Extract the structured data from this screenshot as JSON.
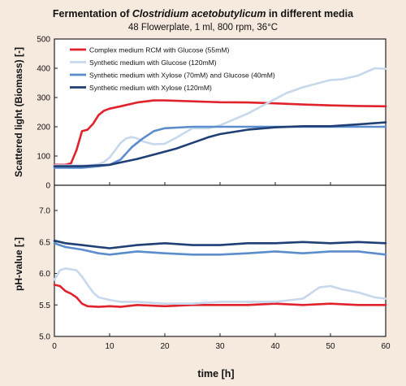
{
  "title": {
    "prefix": "Fermentation of ",
    "organism": "Clostridium  acetobutylicum",
    "suffix": "  in different media"
  },
  "subtitle": "48 Flowerplate, 1 ml, 800 rpm, 36°C",
  "colors": {
    "background": "#f6e9de",
    "series": [
      "#e0222c",
      "#c8d8ec",
      "#5b8ccc",
      "#1f3f75"
    ]
  },
  "chart_data": [
    {
      "type": "line",
      "panel": "top",
      "ylabel": "Scattered light (Biomass)  [-]",
      "xlim": [
        0,
        60
      ],
      "ylim": [
        0,
        500
      ],
      "yticks": [
        0,
        100,
        200,
        300,
        400,
        500
      ],
      "ytick_labels": [
        "0",
        "100",
        "200",
        "300",
        "400",
        "500"
      ],
      "grid": false,
      "legend_position": "top-left",
      "series": [
        {
          "name": "Complex medium RCM with Glucose (55mM)",
          "x": [
            0,
            2,
            3,
            4,
            5,
            6,
            7,
            8,
            9,
            10,
            12,
            15,
            18,
            20,
            25,
            30,
            35,
            40,
            45,
            50,
            55,
            60
          ],
          "y": [
            70,
            70,
            75,
            120,
            185,
            190,
            210,
            240,
            255,
            262,
            270,
            283,
            290,
            290,
            287,
            284,
            283,
            280,
            276,
            273,
            271,
            270
          ]
        },
        {
          "name": "Synthetic medium with Glucose (120mM)",
          "x": [
            0,
            4,
            6,
            8,
            9,
            10,
            11,
            12,
            13,
            14,
            15,
            16,
            18,
            20,
            22,
            25,
            28,
            30,
            35,
            38,
            40,
            42,
            45,
            48,
            50,
            52,
            55,
            58,
            60
          ],
          "y": [
            68,
            68,
            68,
            72,
            80,
            95,
            120,
            145,
            160,
            165,
            160,
            150,
            140,
            142,
            162,
            195,
            195,
            205,
            245,
            275,
            295,
            315,
            335,
            350,
            360,
            362,
            375,
            400,
            398
          ]
        },
        {
          "name": "Synthetic medium with Xylose (70mM) and Glucose (40mM)",
          "x": [
            0,
            5,
            8,
            10,
            12,
            14,
            15,
            16,
            18,
            20,
            25,
            30,
            35,
            40,
            45,
            50,
            55,
            60
          ],
          "y": [
            60,
            60,
            65,
            70,
            88,
            130,
            145,
            160,
            185,
            195,
            200,
            200,
            200,
            200,
            200,
            200,
            200,
            200
          ]
        },
        {
          "name": "Synthetic medium with Xylose (120mM)",
          "x": [
            0,
            5,
            10,
            12,
            15,
            18,
            20,
            22,
            25,
            28,
            30,
            35,
            40,
            45,
            50,
            55,
            60
          ],
          "y": [
            65,
            65,
            70,
            78,
            90,
            105,
            115,
            125,
            145,
            165,
            175,
            190,
            198,
            202,
            202,
            208,
            215
          ]
        }
      ]
    },
    {
      "type": "line",
      "panel": "bottom",
      "xlabel": "time [h]",
      "ylabel": "pH-value  [-]",
      "xlim": [
        0,
        60
      ],
      "ylim": [
        5.0,
        7.4
      ],
      "xticks": [
        0,
        10,
        20,
        30,
        40,
        50,
        60
      ],
      "xtick_labels": [
        "0",
        "10",
        "20",
        "30",
        "40",
        "50",
        "60"
      ],
      "yticks": [
        5.0,
        5.5,
        6.0,
        6.5,
        7.0
      ],
      "ytick_labels": [
        "5.0",
        "5.5",
        "6.0",
        "6.5",
        "7.0"
      ],
      "grid": false,
      "series": [
        {
          "name": "Complex medium RCM with Glucose (55mM)",
          "x": [
            0,
            1,
            2,
            3,
            4,
            5,
            6,
            8,
            10,
            12,
            15,
            20,
            25,
            30,
            35,
            40,
            45,
            50,
            55,
            60
          ],
          "y": [
            5.82,
            5.8,
            5.72,
            5.68,
            5.62,
            5.52,
            5.48,
            5.47,
            5.48,
            5.47,
            5.5,
            5.48,
            5.5,
            5.5,
            5.5,
            5.52,
            5.5,
            5.52,
            5.5,
            5.5
          ]
        },
        {
          "name": "Synthetic medium with Glucose (120mM)",
          "x": [
            0,
            1,
            2,
            4,
            5,
            6,
            7,
            8,
            10,
            12,
            15,
            20,
            25,
            30,
            35,
            40,
            45,
            48,
            50,
            52,
            55,
            58,
            60
          ],
          "y": [
            5.9,
            6.05,
            6.08,
            6.05,
            5.95,
            5.82,
            5.7,
            5.62,
            5.58,
            5.55,
            5.55,
            5.52,
            5.52,
            5.55,
            5.55,
            5.55,
            5.6,
            5.78,
            5.8,
            5.75,
            5.7,
            5.62,
            5.6
          ]
        },
        {
          "name": "Synthetic medium with Xylose (70mM) and Glucose (40mM)",
          "x": [
            0,
            2,
            5,
            8,
            10,
            15,
            20,
            25,
            30,
            35,
            40,
            45,
            50,
            55,
            60
          ],
          "y": [
            6.48,
            6.42,
            6.38,
            6.32,
            6.3,
            6.35,
            6.32,
            6.3,
            6.3,
            6.32,
            6.35,
            6.32,
            6.35,
            6.35,
            6.3
          ]
        },
        {
          "name": "Synthetic medium with Xylose (120mM)",
          "x": [
            0,
            2,
            5,
            8,
            10,
            15,
            20,
            25,
            30,
            35,
            40,
            45,
            50,
            55,
            60
          ],
          "y": [
            6.52,
            6.48,
            6.45,
            6.42,
            6.4,
            6.45,
            6.48,
            6.45,
            6.45,
            6.48,
            6.48,
            6.5,
            6.48,
            6.5,
            6.48
          ]
        }
      ]
    }
  ]
}
